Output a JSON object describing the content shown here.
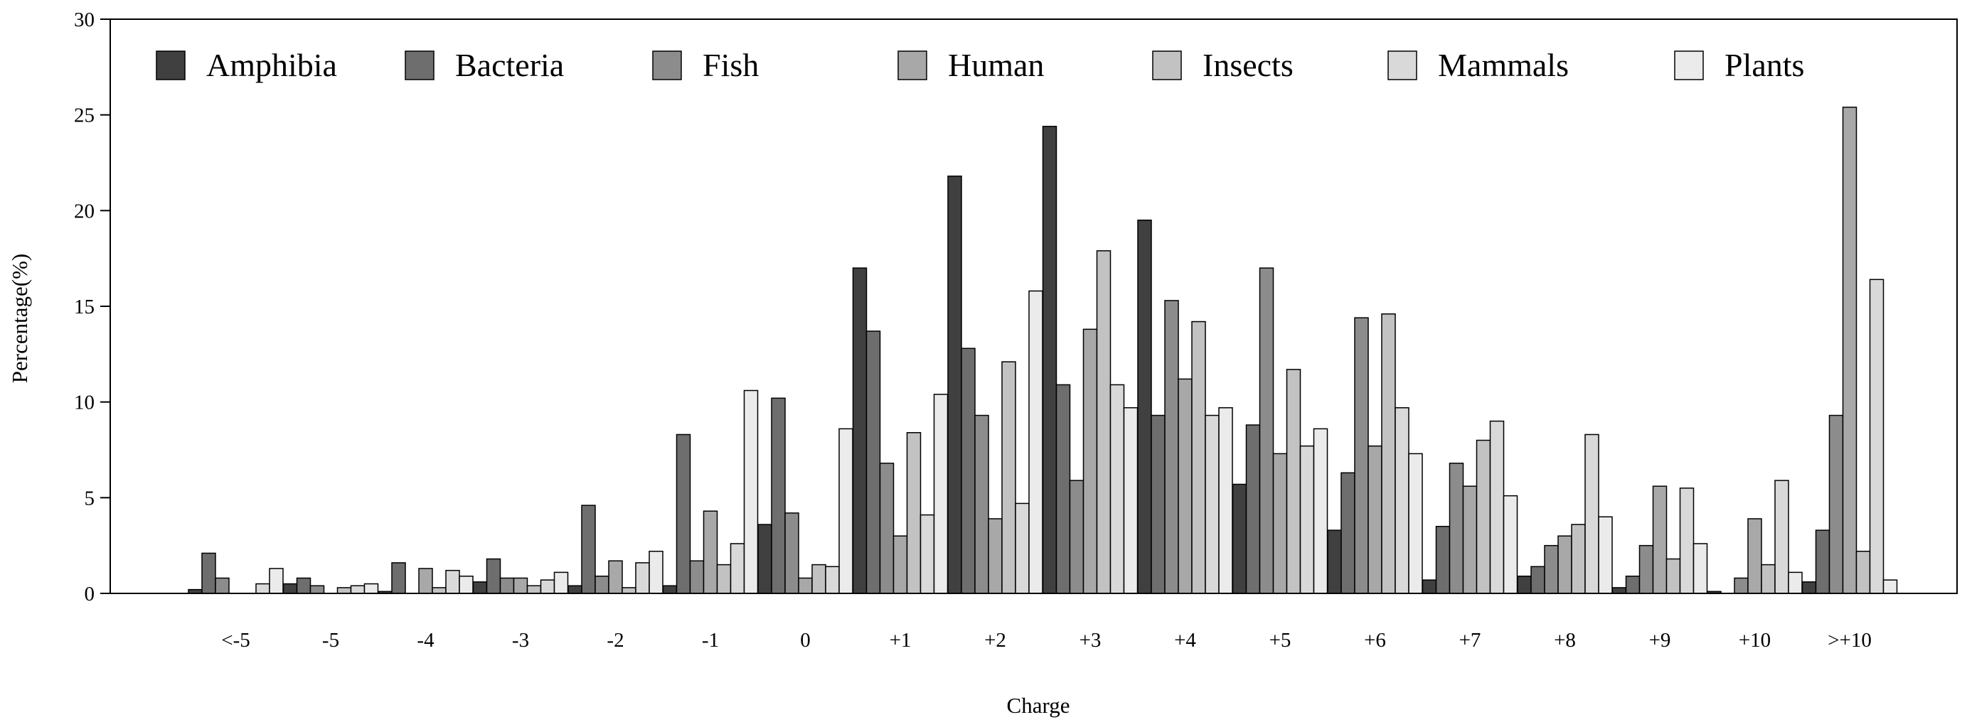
{
  "chart_data": {
    "type": "bar",
    "title": "",
    "xlabel": "Charge",
    "ylabel": "Percentage(%)",
    "ylim": [
      0,
      30
    ],
    "yticks": [
      0,
      5,
      10,
      15,
      20,
      25,
      30
    ],
    "ytick_labels": [
      "0",
      "5",
      "10",
      "15",
      "20",
      "25",
      "30"
    ],
    "grid": false,
    "legend_position": "top",
    "categories": [
      "<-5",
      "-5",
      "-4",
      "-3",
      "-2",
      "-1",
      "0",
      "+1",
      "+2",
      "+3",
      "+4",
      "+5",
      "+6",
      "+7",
      "+8",
      "+9",
      "+10",
      ">+10"
    ],
    "series": [
      {
        "name": "Amphibia",
        "color": "#404040",
        "values": [
          0.2,
          0.5,
          0.1,
          0.6,
          0.4,
          0.4,
          3.6,
          17.0,
          21.8,
          24.4,
          19.5,
          5.7,
          3.3,
          0.7,
          0.9,
          0.3,
          0.1,
          0.6
        ]
      },
      {
        "name": "Bacteria",
        "color": "#6e6e6e",
        "values": [
          2.1,
          0.8,
          1.6,
          1.8,
          4.6,
          8.3,
          10.2,
          13.7,
          12.8,
          10.9,
          9.3,
          8.8,
          6.3,
          3.5,
          1.4,
          0.9,
          0.0,
          3.3
        ]
      },
      {
        "name": "Fish",
        "color": "#8c8c8c",
        "values": [
          0.8,
          0.4,
          0.0,
          0.8,
          0.9,
          1.7,
          4.2,
          6.8,
          9.3,
          5.9,
          15.3,
          17.0,
          14.4,
          6.8,
          2.5,
          2.5,
          0.8,
          9.3
        ]
      },
      {
        "name": "Human",
        "color": "#a8a8a8",
        "values": [
          0.0,
          0.0,
          1.3,
          0.8,
          1.7,
          4.3,
          0.8,
          3.0,
          3.9,
          13.8,
          11.2,
          7.3,
          7.7,
          5.6,
          3.0,
          5.6,
          3.9,
          25.4
        ]
      },
      {
        "name": "Insects",
        "color": "#c2c2c2",
        "values": [
          0.0,
          0.3,
          0.3,
          0.4,
          0.3,
          1.5,
          1.5,
          8.4,
          12.1,
          17.9,
          14.2,
          11.7,
          14.6,
          8.0,
          3.6,
          1.8,
          1.5,
          2.2
        ]
      },
      {
        "name": "Mammals",
        "color": "#d9d9d9",
        "values": [
          0.5,
          0.4,
          1.2,
          0.7,
          1.6,
          2.6,
          1.4,
          4.1,
          4.7,
          10.9,
          9.3,
          7.7,
          9.7,
          9.0,
          8.3,
          5.5,
          5.9,
          16.4
        ]
      },
      {
        "name": "Plants",
        "color": "#ebebeb",
        "values": [
          1.3,
          0.5,
          0.9,
          1.1,
          2.2,
          10.6,
          8.6,
          10.4,
          15.8,
          9.7,
          9.7,
          8.6,
          7.3,
          5.1,
          4.0,
          2.6,
          1.1,
          0.7
        ]
      }
    ]
  }
}
